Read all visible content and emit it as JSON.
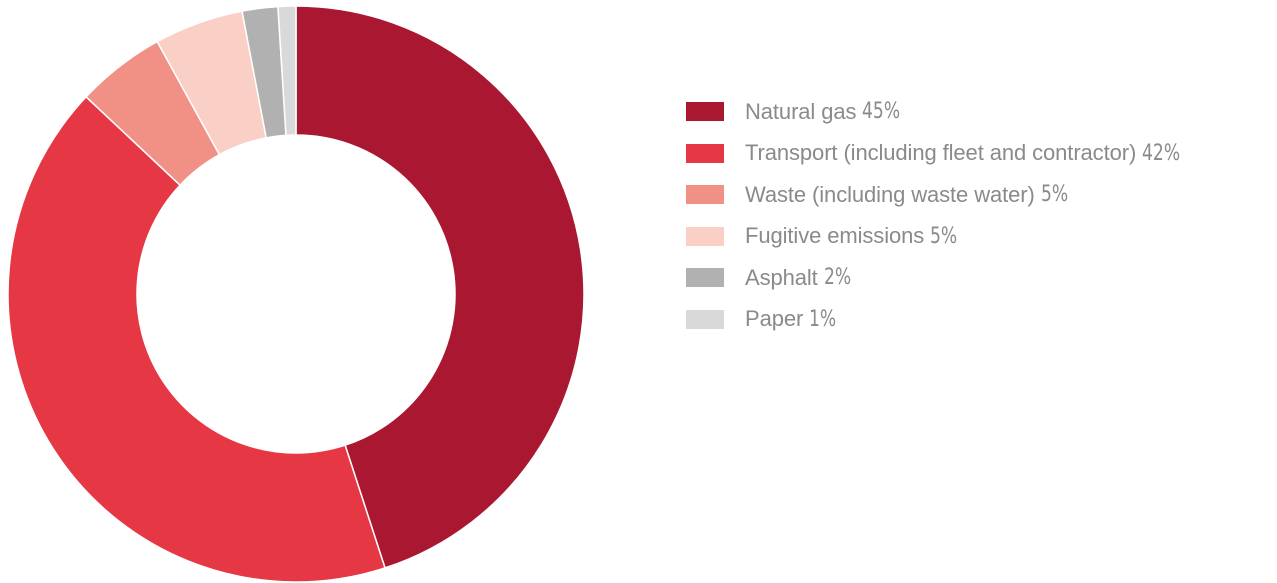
{
  "chart_data": {
    "type": "pie",
    "donut": true,
    "title": "",
    "legend_position": "right",
    "slices": [
      {
        "label": "Natural gas",
        "value": 45,
        "display": "45%",
        "color": "#aa1730"
      },
      {
        "label": "Transport (including fleet and contractor)",
        "value": 42,
        "display": "42%",
        "color": "#e63744"
      },
      {
        "label": "Waste (including waste water)",
        "value": 5,
        "display": "5%",
        "color": "#f19186"
      },
      {
        "label": "Fugitive emissions",
        "value": 5,
        "display": "5%",
        "color": "#facfc6"
      },
      {
        "label": "Asphalt",
        "value": 2,
        "display": "2%",
        "color": "#b1b1b1"
      },
      {
        "label": "Paper",
        "value": 1,
        "display": "1%",
        "color": "#d9d9d9"
      }
    ]
  }
}
